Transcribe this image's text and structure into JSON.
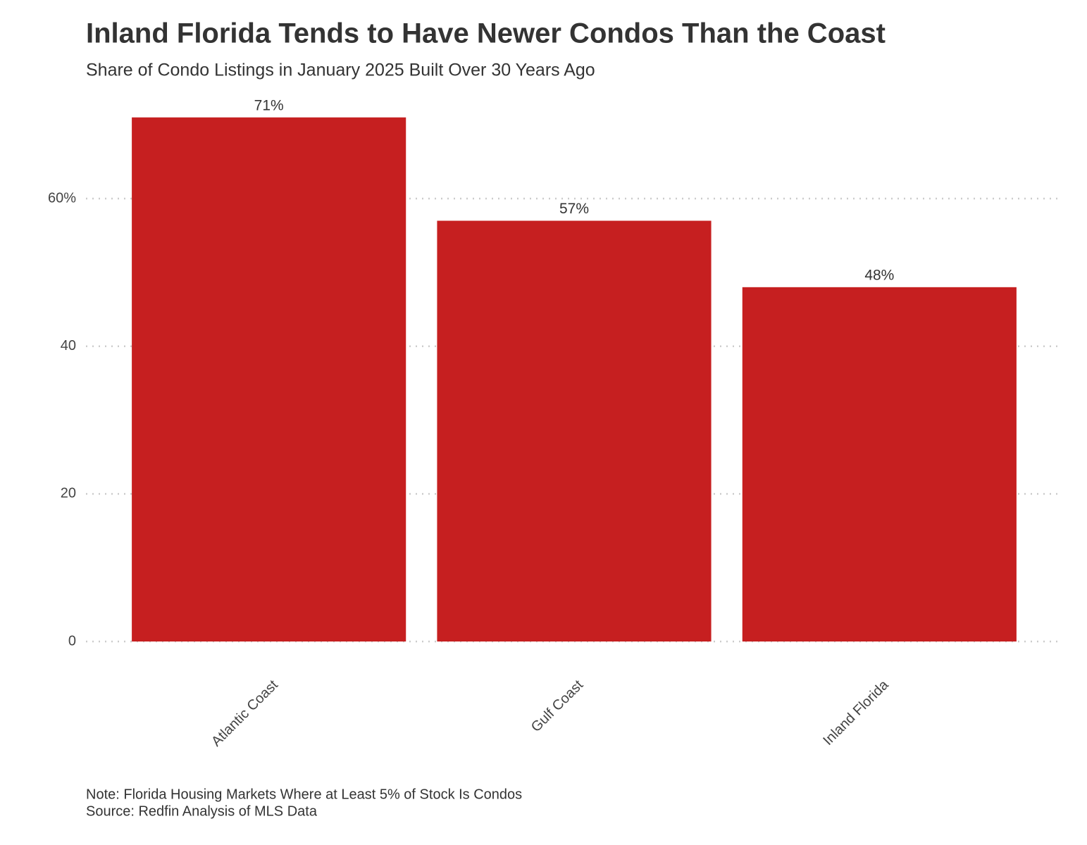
{
  "chart_data": {
    "type": "bar",
    "title": "Inland Florida Tends to Have Newer Condos Than the Coast",
    "subtitle": "Share of Condo Listings in January 2025 Built Over 30 Years Ago",
    "categories": [
      "Atlantic Coast",
      "Gulf Coast",
      "Inland Florida"
    ],
    "values": [
      71,
      57,
      48
    ],
    "value_labels": [
      "71%",
      "57%",
      "48%"
    ],
    "color": "#c61f20",
    "ylim": [
      0,
      72.5
    ],
    "yticks": [
      0,
      20,
      40,
      {
        "value": 60,
        "label": "60%"
      }
    ],
    "grid": true,
    "notes": [
      "Note: Florida Housing Markets Where at Least 5% of Stock Is Condos",
      "Source: Redfin Analysis of MLS Data"
    ]
  }
}
